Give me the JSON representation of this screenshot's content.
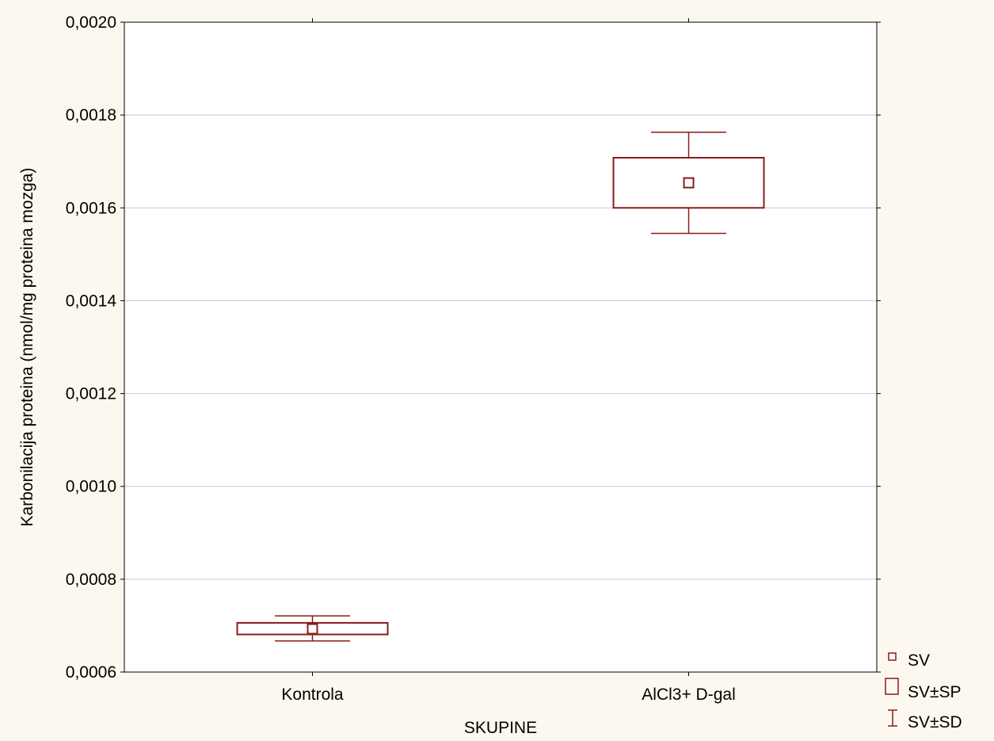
{
  "chart_data": {
    "type": "box",
    "xlabel": "SKUPINE",
    "ylabel": "Karbonilacija proteina (nmol/mg proteina mozga)",
    "categories": [
      "Kontrola",
      "AlCl3+ D-gal"
    ],
    "ylim": [
      0.0006,
      0.002
    ],
    "yticks": [
      0.0006,
      0.0008,
      0.001,
      0.0012,
      0.0014,
      0.0016,
      0.0018,
      0.002
    ],
    "ytick_labels": [
      "0,0006",
      "0,0008",
      "0,0010",
      "0,0012",
      "0,0014",
      "0,0016",
      "0,0018",
      "0,0020"
    ],
    "series": [
      {
        "category": "Kontrola",
        "mean": 0.000693,
        "se_low": 0.000681,
        "se_high": 0.000706,
        "sd_low": 0.000667,
        "sd_high": 0.000721
      },
      {
        "category": "AlCl3+ D-gal",
        "mean": 0.001654,
        "se_low": 0.0016,
        "se_high": 0.001708,
        "sd_low": 0.001545,
        "sd_high": 0.001763
      }
    ],
    "legend": [
      "SV",
      "SV±SP",
      "SV±SD"
    ],
    "legend_position": "bottom-right",
    "grid": true,
    "colors": {
      "series": "#8b1a1a",
      "grid": "#c8c8c8",
      "background": "#fdf8ef",
      "plot_area": "#ffffff"
    }
  }
}
